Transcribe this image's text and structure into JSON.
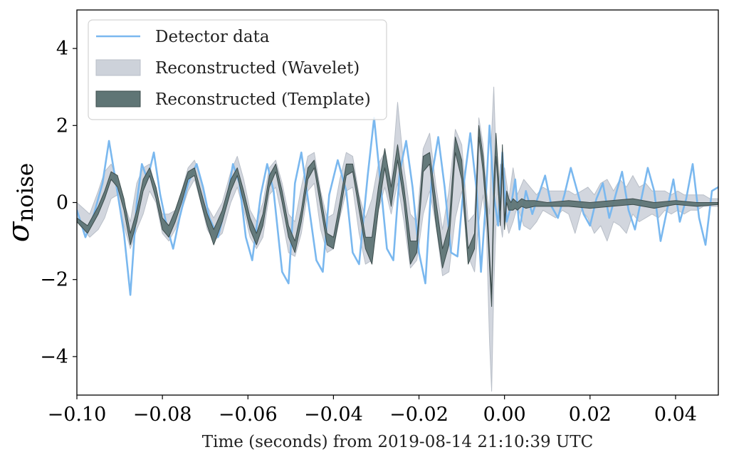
{
  "chart_data": {
    "type": "line",
    "title": "",
    "xlabel": "Time (seconds) from 2019-08-14 21:10:39 UTC",
    "ylabel": {
      "base": "σ",
      "subscript": "noise"
    },
    "xlim": [
      -0.1,
      0.05
    ],
    "ylim": [
      -5,
      5
    ],
    "grid": false,
    "legend_position": "top-left",
    "xticks": [
      -0.1,
      -0.08,
      -0.06,
      -0.04,
      -0.02,
      0.0,
      0.02,
      0.04
    ],
    "xtick_labels": [
      "−0.10",
      "−0.08",
      "−0.06",
      "−0.04",
      "−0.02",
      "0.00",
      "0.02",
      "0.04"
    ],
    "yticks": [
      -4,
      -2,
      0,
      2,
      4
    ],
    "ytick_labels": [
      "−4",
      "−2",
      "0",
      "2",
      "4"
    ],
    "colors": {
      "detector": "#7ab8ef",
      "wavelet": "#cdd2da",
      "template": "#5f7575",
      "template_edge": "#3d4d4d"
    },
    "series": [
      {
        "name": "Detector data",
        "kind": "line",
        "x": [
          -0.1,
          -0.098,
          -0.096,
          -0.094,
          -0.0925,
          -0.091,
          -0.089,
          -0.0875,
          -0.086,
          -0.0848,
          -0.0835,
          -0.082,
          -0.0805,
          -0.079,
          -0.0775,
          -0.076,
          -0.074,
          -0.072,
          -0.0705,
          -0.069,
          -0.067,
          -0.065,
          -0.0635,
          -0.062,
          -0.0605,
          -0.059,
          -0.057,
          -0.0555,
          -0.054,
          -0.052,
          -0.0505,
          -0.049,
          -0.0475,
          -0.046,
          -0.044,
          -0.0425,
          -0.041,
          -0.039,
          -0.037,
          -0.0355,
          -0.034,
          -0.032,
          -0.0305,
          -0.029,
          -0.0275,
          -0.026,
          -0.0245,
          -0.023,
          -0.0215,
          -0.02,
          -0.0185,
          -0.017,
          -0.0155,
          -0.014,
          -0.0125,
          -0.011,
          -0.0095,
          -0.008,
          -0.0065,
          -0.0055,
          -0.0045,
          -0.0035,
          -0.0025,
          -0.0015,
          -0.0005,
          0.0005,
          0.0015,
          0.0025,
          0.0035,
          0.005,
          0.0065,
          0.008,
          0.0095,
          0.011,
          0.0125,
          0.014,
          0.0155,
          0.017,
          0.0185,
          0.02,
          0.0215,
          0.023,
          0.0245,
          0.026,
          0.0275,
          0.029,
          0.0305,
          0.032,
          0.0335,
          0.035,
          0.0365,
          0.038,
          0.0395,
          0.041,
          0.0425,
          0.044,
          0.0455,
          0.047,
          0.0485,
          0.05
        ],
        "y": [
          -0.2,
          -0.9,
          -0.3,
          0.5,
          1.6,
          0.6,
          -0.8,
          -2.4,
          0.0,
          1.0,
          0.6,
          1.3,
          0.2,
          -0.6,
          -1.2,
          -0.4,
          0.5,
          1.0,
          0.4,
          -0.4,
          -0.9,
          0.0,
          1.0,
          0.5,
          -0.9,
          -1.5,
          0.2,
          1.0,
          0.3,
          -1.8,
          -2.1,
          0.5,
          1.3,
          0.1,
          -1.5,
          -1.8,
          0.2,
          1.1,
          0.3,
          -1.3,
          -1.6,
          0.7,
          2.2,
          0.5,
          -1.2,
          -1.5,
          0.8,
          1.6,
          0.4,
          -1.3,
          -2.1,
          0.7,
          1.7,
          0.4,
          -1.3,
          -1.4,
          0.5,
          1.8,
          0.3,
          -1.8,
          -0.2,
          2.0,
          0.2,
          -0.6,
          1.3,
          -0.5,
          -0.1,
          0.6,
          -0.7,
          0.3,
          -0.3,
          0.2,
          0.7,
          -0.1,
          -0.4,
          0.2,
          0.9,
          0.3,
          -0.3,
          -0.6,
          0.1,
          0.5,
          -0.4,
          0.2,
          0.8,
          -0.2,
          -0.7,
          0.1,
          0.9,
          0.3,
          -1.0,
          -0.2,
          0.6,
          -0.5,
          0.1,
          1.0,
          -0.4,
          -1.1,
          0.3,
          0.4
        ]
      },
      {
        "name": "Reconstructed (Wavelet)",
        "kind": "band",
        "x": [
          -0.1,
          -0.097,
          -0.095,
          -0.0935,
          -0.092,
          -0.0905,
          -0.089,
          -0.0875,
          -0.086,
          -0.0845,
          -0.083,
          -0.0815,
          -0.08,
          -0.0785,
          -0.077,
          -0.0755,
          -0.074,
          -0.0725,
          -0.071,
          -0.0695,
          -0.068,
          -0.066,
          -0.064,
          -0.0625,
          -0.061,
          -0.0595,
          -0.058,
          -0.0565,
          -0.055,
          -0.0535,
          -0.052,
          -0.0505,
          -0.049,
          -0.0475,
          -0.046,
          -0.0445,
          -0.043,
          -0.0415,
          -0.04,
          -0.0385,
          -0.037,
          -0.0355,
          -0.034,
          -0.0325,
          -0.031,
          -0.0295,
          -0.028,
          -0.0265,
          -0.025,
          -0.0235,
          -0.022,
          -0.0205,
          -0.019,
          -0.0175,
          -0.016,
          -0.0145,
          -0.013,
          -0.0115,
          -0.01,
          -0.0085,
          -0.007,
          -0.006,
          -0.005,
          -0.0042,
          -0.0035,
          -0.003,
          -0.0025,
          -0.002,
          -0.0015,
          -0.001,
          -0.0005,
          0.0,
          0.001,
          0.002,
          0.003,
          0.0045,
          0.006,
          0.0075,
          0.009,
          0.0105,
          0.012,
          0.0135,
          0.015,
          0.0165,
          0.018,
          0.0195,
          0.021,
          0.0225,
          0.024,
          0.0255,
          0.027,
          0.0285,
          0.03,
          0.0315,
          0.033,
          0.0345,
          0.036,
          0.0375,
          0.039,
          0.0405,
          0.042,
          0.0435,
          0.045,
          0.0465,
          0.048,
          0.05
        ],
        "upper": [
          0.0,
          -0.3,
          0.3,
          0.8,
          1.0,
          0.6,
          0.0,
          -0.5,
          0.5,
          0.9,
          1.0,
          0.3,
          -0.3,
          -0.3,
          -0.2,
          0.3,
          0.9,
          1.1,
          0.6,
          -0.1,
          -0.4,
          0.0,
          0.8,
          1.2,
          0.6,
          -0.2,
          -0.5,
          0.0,
          0.9,
          1.1,
          0.5,
          -0.3,
          -0.5,
          0.4,
          1.2,
          1.3,
          0.3,
          -0.4,
          -0.3,
          0.6,
          1.3,
          1.2,
          0.2,
          -0.4,
          0.1,
          1.0,
          1.3,
          0.5,
          2.6,
          0.9,
          -0.3,
          -0.5,
          1.4,
          1.8,
          0.4,
          -0.7,
          0.3,
          1.9,
          1.5,
          -0.5,
          -0.3,
          2.2,
          1.5,
          0.3,
          -0.3,
          1.8,
          3.0,
          1.2,
          0.2,
          1.0,
          0.6,
          0.9,
          0.1,
          0.9,
          0.2,
          0.6,
          0.4,
          0.2,
          0.4,
          0.3,
          0.3,
          0.3,
          0.3,
          0.2,
          0.3,
          0.4,
          0.2,
          0.5,
          0.6,
          0.3,
          0.6,
          0.4,
          0.7,
          0.4,
          0.5,
          0.3,
          0.3,
          0.3,
          0.2,
          0.3,
          0.2,
          0.2,
          0.2,
          0.2,
          0.1,
          0.1
        ],
        "lower": [
          -0.5,
          -0.9,
          -0.7,
          -0.4,
          0.1,
          0.2,
          -0.6,
          -1.2,
          -0.7,
          -0.3,
          0.3,
          0.0,
          -0.8,
          -1.0,
          -0.7,
          -0.2,
          0.3,
          0.6,
          0.0,
          -0.7,
          -1.0,
          -0.8,
          0.0,
          0.4,
          -0.2,
          -0.9,
          -1.2,
          -0.9,
          0.2,
          0.4,
          -0.4,
          -1.3,
          -1.4,
          -0.8,
          0.3,
          0.5,
          -0.7,
          -1.3,
          -1.2,
          -0.4,
          0.3,
          0.4,
          -0.8,
          -1.6,
          -1.5,
          -0.2,
          0.4,
          -0.3,
          0.5,
          -0.5,
          -1.7,
          -1.5,
          -0.3,
          0.3,
          -0.6,
          -1.9,
          -1.8,
          -0.4,
          0.3,
          -1.4,
          -1.8,
          -0.5,
          0.2,
          -0.8,
          -3.6,
          -4.9,
          -2.2,
          -0.6,
          -0.5,
          -0.5,
          -0.9,
          -0.3,
          -0.8,
          -0.5,
          -0.1,
          -0.6,
          -0.7,
          -0.5,
          -0.2,
          -0.3,
          -0.4,
          -0.2,
          -0.3,
          -0.8,
          -0.2,
          -0.4,
          -0.8,
          -0.6,
          -1.0,
          -0.5,
          -0.6,
          -0.8,
          -0.3,
          -0.5,
          -0.4,
          -0.3,
          -0.4,
          -0.2,
          -0.3,
          -0.2,
          -0.3,
          -0.2,
          -0.2,
          -0.1,
          -0.1,
          -0.1
        ]
      },
      {
        "name": "Reconstructed (Template)",
        "kind": "band",
        "x": [
          -0.1,
          -0.0975,
          -0.095,
          -0.0935,
          -0.092,
          -0.0905,
          -0.089,
          -0.0875,
          -0.086,
          -0.0845,
          -0.083,
          -0.0815,
          -0.08,
          -0.0785,
          -0.077,
          -0.0755,
          -0.074,
          -0.0725,
          -0.071,
          -0.0695,
          -0.068,
          -0.066,
          -0.064,
          -0.0625,
          -0.061,
          -0.0595,
          -0.058,
          -0.0565,
          -0.055,
          -0.0535,
          -0.052,
          -0.0505,
          -0.049,
          -0.0475,
          -0.046,
          -0.0445,
          -0.043,
          -0.0415,
          -0.04,
          -0.0385,
          -0.037,
          -0.0355,
          -0.034,
          -0.0325,
          -0.031,
          -0.0295,
          -0.028,
          -0.0265,
          -0.025,
          -0.0235,
          -0.022,
          -0.0205,
          -0.019,
          -0.0175,
          -0.016,
          -0.0145,
          -0.013,
          -0.0115,
          -0.01,
          -0.0085,
          -0.007,
          -0.006,
          -0.005,
          -0.004,
          -0.003,
          -0.0025,
          -0.002,
          -0.0015,
          -0.001,
          -0.0005,
          0.0,
          0.0005,
          0.001,
          0.0015,
          0.002,
          0.0025,
          0.003,
          0.004,
          0.005,
          0.007,
          0.01,
          0.015,
          0.02,
          0.025,
          0.03,
          0.035,
          0.04,
          0.045,
          0.05
        ],
        "upper": [
          -0.4,
          -0.6,
          -0.1,
          0.3,
          0.8,
          0.7,
          0.1,
          -0.8,
          -0.2,
          0.6,
          0.9,
          0.4,
          -0.4,
          -0.6,
          -0.2,
          0.3,
          0.8,
          0.9,
          0.3,
          -0.3,
          -0.7,
          -0.2,
          0.6,
          0.9,
          0.3,
          -0.4,
          -0.8,
          -0.3,
          0.7,
          1.0,
          0.3,
          -0.6,
          -1.0,
          -0.2,
          0.9,
          1.1,
          0.2,
          -0.8,
          -0.9,
          0.0,
          1.0,
          1.0,
          0.1,
          -0.9,
          -0.9,
          0.4,
          1.4,
          0.4,
          1.5,
          0.4,
          -1.0,
          -1.0,
          1.2,
          1.3,
          0.0,
          -1.2,
          -0.6,
          1.7,
          1.1,
          -1.2,
          -0.8,
          2.0,
          1.2,
          -0.2,
          -2.4,
          0.5,
          1.8,
          0.9,
          -0.2,
          1.5,
          -0.5,
          0.3,
          0.1,
          0.0,
          0.1,
          0.05,
          0.0,
          0.1,
          0.05,
          0.05,
          0.0,
          0.05,
          0.0,
          0.05,
          0.1,
          0.0,
          0.05,
          0.0,
          0.0
        ],
        "lower": [
          -0.5,
          -0.8,
          -0.3,
          0.1,
          0.6,
          0.4,
          -0.2,
          -1.1,
          -0.5,
          0.3,
          0.7,
          0.1,
          -0.7,
          -0.9,
          -0.5,
          0.0,
          0.6,
          0.7,
          0.0,
          -0.6,
          -1.1,
          -0.5,
          0.3,
          0.7,
          0.0,
          -0.7,
          -1.1,
          -0.6,
          0.4,
          0.8,
          0.0,
          -0.9,
          -1.3,
          -0.5,
          0.6,
          0.9,
          -0.1,
          -1.1,
          -1.2,
          -0.3,
          0.7,
          0.8,
          -0.2,
          -1.2,
          -1.6,
          -0.2,
          0.9,
          -0.1,
          1.1,
          0.0,
          -1.6,
          -1.3,
          0.8,
          1.0,
          -0.6,
          -1.7,
          -1.1,
          1.3,
          0.6,
          -1.6,
          -1.2,
          1.7,
          0.8,
          -0.6,
          -2.7,
          -0.2,
          1.2,
          0.4,
          -0.6,
          1.0,
          -0.7,
          0.0,
          -0.2,
          -0.2,
          -0.2,
          -0.15,
          -0.2,
          -0.1,
          -0.15,
          -0.1,
          -0.1,
          -0.1,
          -0.15,
          -0.1,
          -0.05,
          -0.15,
          -0.05,
          -0.1,
          -0.05
        ]
      }
    ]
  }
}
